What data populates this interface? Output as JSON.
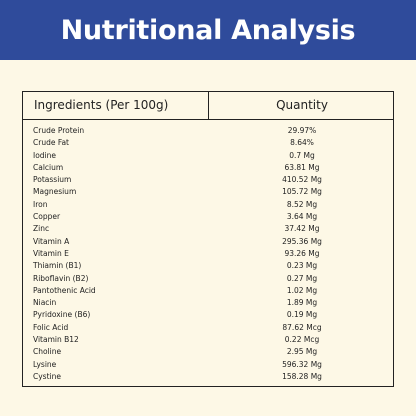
{
  "header": {
    "title": "Nutritional Analysis"
  },
  "table": {
    "columns": [
      "Ingredients (Per 100g)",
      "Quantity"
    ],
    "rows": [
      [
        "Crude Protein",
        "29.97%"
      ],
      [
        "Crude Fat",
        "8.64%"
      ],
      [
        "Iodine",
        "0.7 Mg"
      ],
      [
        "Calcium",
        "63.81 Mg"
      ],
      [
        "Potassium",
        "410.52 Mg"
      ],
      [
        "Magnesium",
        "105.72 Mg"
      ],
      [
        "Iron",
        "8.52 Mg"
      ],
      [
        "Copper",
        "3.64 Mg"
      ],
      [
        "Zinc",
        "37.42 Mg"
      ],
      [
        "Vitamin A",
        "295.36 Mg"
      ],
      [
        "Vitamin E",
        "93.26 Mg"
      ],
      [
        "Thiamin (B1)",
        "0.23 Mg"
      ],
      [
        "Riboflavin (B2)",
        "0.27 Mg"
      ],
      [
        "Pantothenic Acid",
        "1.02 Mg"
      ],
      [
        "Niacin",
        "1.89 Mg"
      ],
      [
        "Pyridoxine (B6)",
        "0.19 Mg"
      ],
      [
        "Folic Acid",
        "87.62 Mcg"
      ],
      [
        "Vitamin B12",
        "0.22 Mcg"
      ],
      [
        "Choline",
        "2.95 Mg"
      ],
      [
        "Lysine",
        "596.32 Mg"
      ],
      [
        "Cystine",
        "158.28 Mg"
      ]
    ]
  }
}
